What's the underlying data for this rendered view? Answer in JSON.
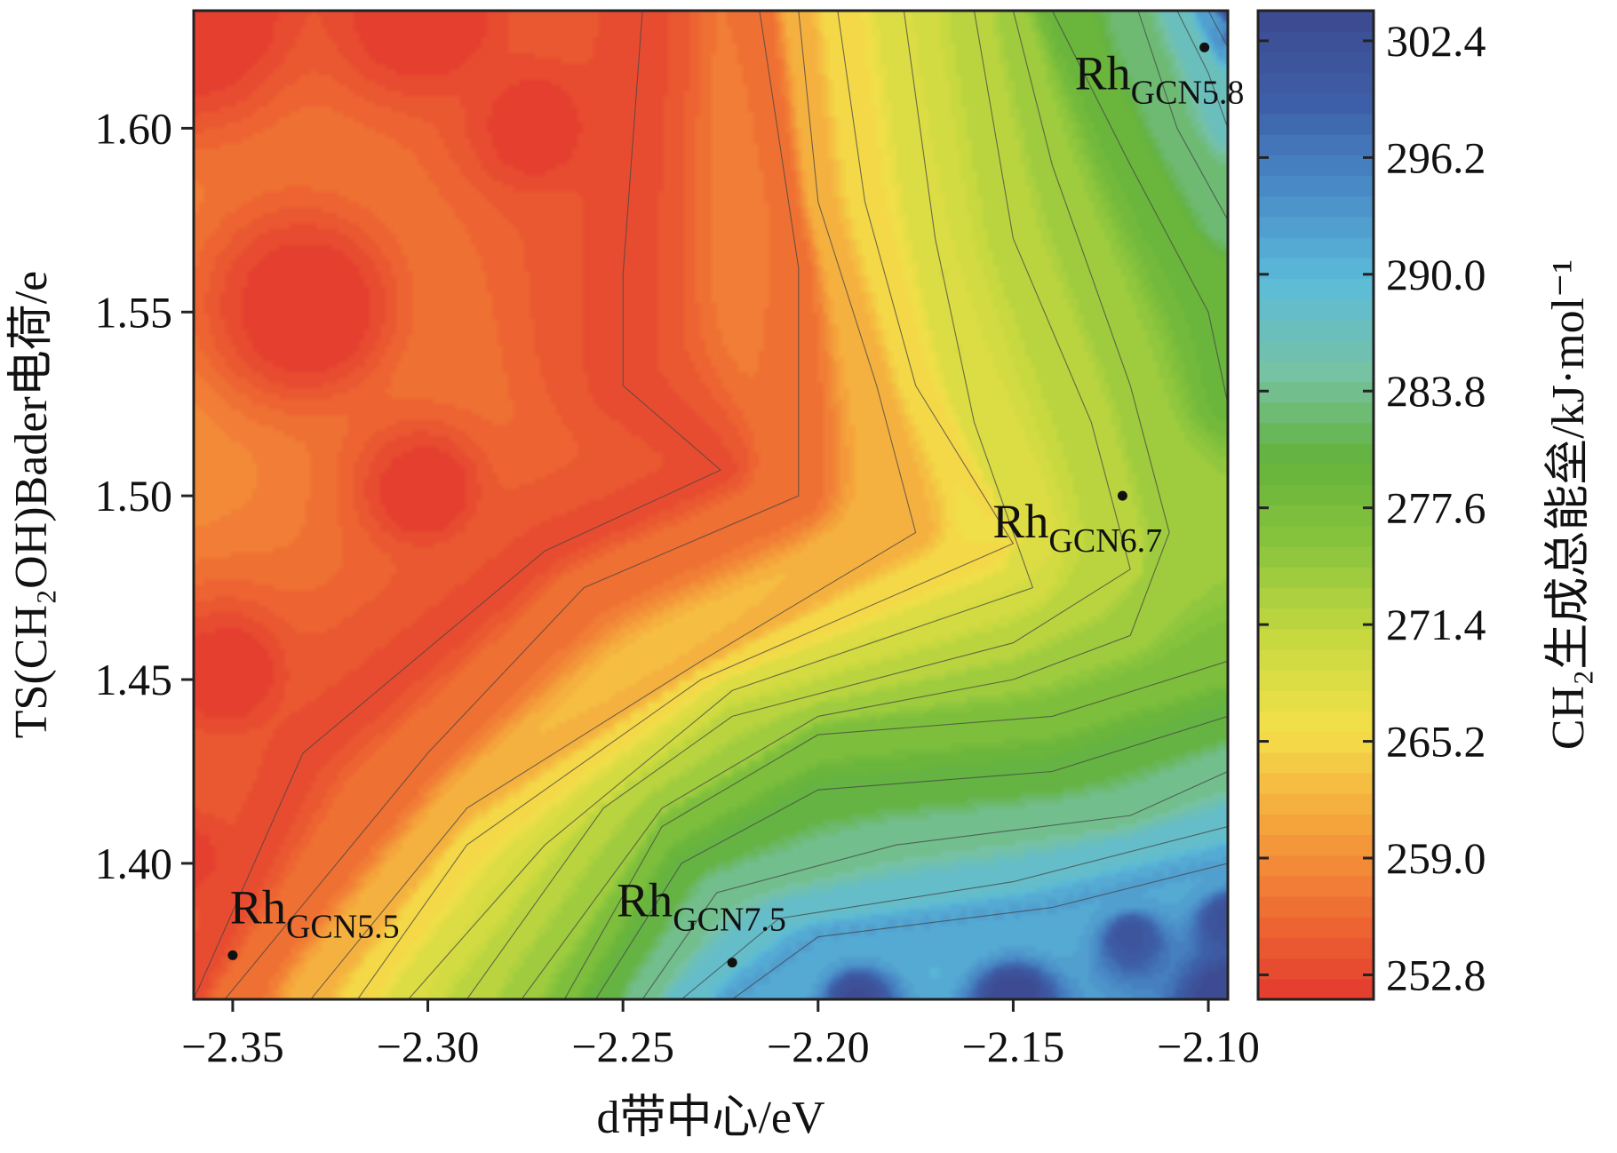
{
  "chart_data": {
    "type": "heatmap",
    "subtype": "filled-contour",
    "xlabel": "d带中心/eV",
    "ylabel": "TS(CH₂OH)Bader电荷/e",
    "colorbar_label": "CH₂生成总能垒/kJ·mol⁻¹",
    "xlim": [
      -2.36,
      -2.095
    ],
    "ylim": [
      1.363,
      1.632
    ],
    "x_ticks": [
      -2.35,
      -2.3,
      -2.25,
      -2.2,
      -2.15,
      -2.1
    ],
    "x_tick_labels": [
      "−2.35",
      "−2.30",
      "−2.25",
      "−2.20",
      "−2.15",
      "−2.10"
    ],
    "y_ticks": [
      1.4,
      1.45,
      1.5,
      1.55,
      1.6
    ],
    "y_tick_labels": [
      "1.40",
      "1.45",
      "1.50",
      "1.55",
      "1.60"
    ],
    "colorbar_range": [
      251.5,
      304.0
    ],
    "colorbar_ticks": [
      252.8,
      259.0,
      265.2,
      271.4,
      277.6,
      283.8,
      290.0,
      296.2,
      302.4
    ],
    "colorbar_tick_labels": [
      "252.8",
      "259.0",
      "265.2",
      "271.4",
      "277.6",
      "283.8",
      "290.0",
      "296.2",
      "302.4"
    ],
    "colormap": [
      "#e43a2f",
      "#ef6e33",
      "#f5a73d",
      "#f4e04a",
      "#c8d93f",
      "#8cc63e",
      "#64b23a",
      "#76c2a6",
      "#5bbbd9",
      "#4a8cc8",
      "#3d5ea8",
      "#3d4a8f"
    ],
    "points": [
      {
        "name": "Rh",
        "sub": "GCN5.5",
        "x": -2.35,
        "y": 1.375
      },
      {
        "name": "Rh",
        "sub": "GCN7.5",
        "x": -2.222,
        "y": 1.373
      },
      {
        "name": "Rh",
        "sub": "GCN6.7",
        "x": -2.122,
        "y": 1.5
      },
      {
        "name": "Rh",
        "sub": "GCN5.8",
        "x": -2.101,
        "y": 1.622
      }
    ],
    "contour_levels": [
      {
        "value": 253.5,
        "path": [
          [
            -2.36,
            1.363
          ],
          [
            -2.332,
            1.43
          ],
          [
            -2.27,
            1.485
          ],
          [
            -2.225,
            1.507
          ],
          [
            -2.25,
            1.53
          ],
          [
            -2.25,
            1.56
          ],
          [
            -2.245,
            1.632
          ]
        ]
      },
      {
        "value": 256.5,
        "path": [
          [
            -2.352,
            1.363
          ],
          [
            -2.3,
            1.43
          ],
          [
            -2.26,
            1.475
          ],
          [
            -2.205,
            1.5
          ],
          [
            -2.205,
            1.53
          ],
          [
            -2.205,
            1.562
          ],
          [
            -2.215,
            1.632
          ]
        ]
      },
      {
        "value": 262.0,
        "path": [
          [
            -2.33,
            1.363
          ],
          [
            -2.29,
            1.415
          ],
          [
            -2.23,
            1.455
          ],
          [
            -2.175,
            1.49
          ],
          [
            -2.185,
            1.53
          ],
          [
            -2.2,
            1.58
          ],
          [
            -2.205,
            1.632
          ]
        ]
      },
      {
        "value": 265.5,
        "path": [
          [
            -2.318,
            1.363
          ],
          [
            -2.29,
            1.405
          ],
          [
            -2.23,
            1.45
          ],
          [
            -2.15,
            1.487
          ],
          [
            -2.175,
            1.53
          ],
          [
            -2.188,
            1.58
          ],
          [
            -2.195,
            1.632
          ]
        ]
      },
      {
        "value": 269.0,
        "path": [
          [
            -2.305,
            1.363
          ],
          [
            -2.27,
            1.405
          ],
          [
            -2.222,
            1.447
          ],
          [
            -2.145,
            1.475
          ],
          [
            -2.16,
            1.52
          ],
          [
            -2.17,
            1.57
          ],
          [
            -2.178,
            1.632
          ]
        ]
      },
      {
        "value": 271.5,
        "path": [
          [
            -2.29,
            1.363
          ],
          [
            -2.255,
            1.415
          ],
          [
            -2.222,
            1.44
          ],
          [
            -2.15,
            1.46
          ],
          [
            -2.12,
            1.48
          ],
          [
            -2.13,
            1.52
          ],
          [
            -2.15,
            1.57
          ],
          [
            -2.16,
            1.632
          ]
        ]
      },
      {
        "value": 274.0,
        "path": [
          [
            -2.276,
            1.363
          ],
          [
            -2.24,
            1.415
          ],
          [
            -2.2,
            1.44
          ],
          [
            -2.15,
            1.45
          ],
          [
            -2.12,
            1.462
          ],
          [
            -2.11,
            1.49
          ],
          [
            -2.12,
            1.53
          ],
          [
            -2.14,
            1.59
          ],
          [
            -2.15,
            1.632
          ]
        ]
      },
      {
        "value": 277.0,
        "path": [
          [
            -2.265,
            1.363
          ],
          [
            -2.24,
            1.41
          ],
          [
            -2.2,
            1.435
          ],
          [
            -2.14,
            1.44
          ],
          [
            -2.095,
            1.455
          ]
        ]
      },
      {
        "value": 280.0,
        "path": [
          [
            -2.257,
            1.363
          ],
          [
            -2.235,
            1.4
          ],
          [
            -2.2,
            1.42
          ],
          [
            -2.14,
            1.425
          ],
          [
            -2.095,
            1.44
          ]
        ]
      },
      {
        "value": 284.0,
        "path": [
          [
            -2.245,
            1.363
          ],
          [
            -2.226,
            1.392
          ],
          [
            -2.18,
            1.405
          ],
          [
            -2.12,
            1.413
          ],
          [
            -2.095,
            1.425
          ]
        ]
      },
      {
        "value": 288.0,
        "path": [
          [
            -2.235,
            1.363
          ],
          [
            -2.21,
            1.385
          ],
          [
            -2.15,
            1.395
          ],
          [
            -2.095,
            1.41
          ]
        ]
      },
      {
        "value": 292.0,
        "path": [
          [
            -2.222,
            1.363
          ],
          [
            -2.2,
            1.38
          ],
          [
            -2.14,
            1.388
          ],
          [
            -2.095,
            1.4
          ]
        ]
      },
      {
        "value": 279.0,
        "path": [
          [
            -2.14,
            1.632
          ],
          [
            -2.12,
            1.59
          ],
          [
            -2.1,
            1.55
          ],
          [
            -2.095,
            1.525
          ]
        ]
      },
      {
        "value": 283.0,
        "path": [
          [
            -2.118,
            1.632
          ],
          [
            -2.108,
            1.6
          ],
          [
            -2.095,
            1.575
          ]
        ]
      },
      {
        "value": 287.0,
        "path": [
          [
            -2.108,
            1.632
          ],
          [
            -2.1,
            1.615
          ],
          [
            -2.095,
            1.6
          ]
        ]
      },
      {
        "value": 293.0,
        "path": [
          [
            -2.1,
            1.632
          ],
          [
            -2.095,
            1.622
          ]
        ]
      }
    ]
  }
}
